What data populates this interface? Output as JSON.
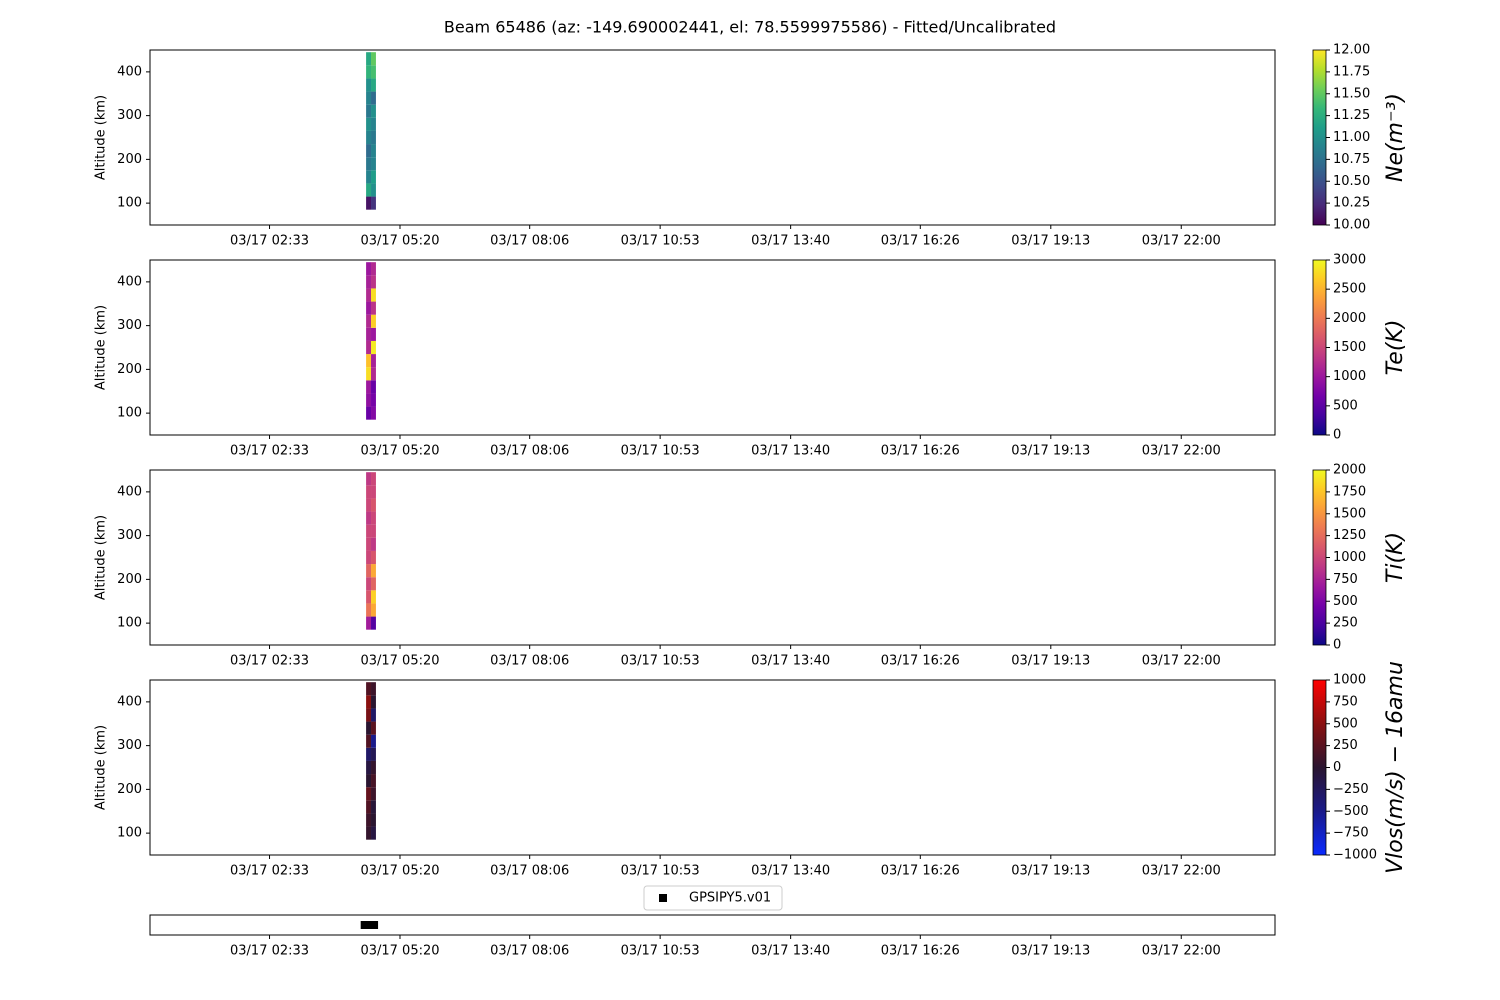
{
  "title": "Beam 65486 (az: -149.690002441, el: 78.5599975586) - Fitted/Uncalibrated",
  "chart_data": [
    {
      "type": "heatmap",
      "ylabel": "Altitude (km)",
      "xlim": [
        0,
        24
      ],
      "xticks": [
        {
          "value": 2.55,
          "label": "03/17 02:33"
        },
        {
          "value": 5.333,
          "label": "03/17 05:20"
        },
        {
          "value": 8.1,
          "label": "03/17 08:06"
        },
        {
          "value": 10.883,
          "label": "03/17 10:53"
        },
        {
          "value": 13.667,
          "label": "03/17 13:40"
        },
        {
          "value": 16.433,
          "label": "03/17 16:26"
        },
        {
          "value": 19.217,
          "label": "03/17 19:13"
        },
        {
          "value": 22,
          "label": "03/17 22:00"
        }
      ],
      "ylim": [
        50,
        450
      ],
      "yticks": [
        100,
        200,
        300,
        400
      ],
      "x_edges": [
        4.61,
        4.715,
        4.82
      ],
      "y_edges": [
        85,
        115,
        145,
        175,
        205,
        235,
        265,
        295,
        325,
        355,
        385,
        415,
        445
      ],
      "values": [
        [
          10.1,
          10.3
        ],
        [
          11.2,
          11.0
        ],
        [
          10.9,
          11.1
        ],
        [
          10.8,
          10.9
        ],
        [
          10.7,
          10.9
        ],
        [
          10.9,
          10.8
        ],
        [
          11.0,
          10.9
        ],
        [
          10.8,
          11.0
        ],
        [
          10.9,
          10.7
        ],
        [
          11.0,
          11.2
        ],
        [
          11.3,
          11.4
        ],
        [
          11.2,
          11.5
        ]
      ],
      "colorbar": {
        "label": "Ne(m⁻³)",
        "lim": [
          10,
          12
        ],
        "ticks": [
          {
            "value": 10,
            "label": "10.00"
          },
          {
            "value": 10.25,
            "label": "10.25"
          },
          {
            "value": 10.5,
            "label": "10.50"
          },
          {
            "value": 10.75,
            "label": "10.75"
          },
          {
            "value": 11,
            "label": "11.00"
          },
          {
            "value": 11.25,
            "label": "11.25"
          },
          {
            "value": 11.5,
            "label": "11.50"
          },
          {
            "value": 11.75,
            "label": "11.75"
          },
          {
            "value": 12,
            "label": "12.00"
          }
        ],
        "colormap": [
          "#440154",
          "#482878",
          "#3e4989",
          "#31688e",
          "#26828e",
          "#1f9e89",
          "#35b779",
          "#6ece58",
          "#b5de2b",
          "#fde725"
        ]
      }
    },
    {
      "type": "heatmap",
      "ylabel": "Altitude (km)",
      "xlim": [
        0,
        24
      ],
      "xticks": [
        {
          "value": 2.55,
          "label": "03/17 02:33"
        },
        {
          "value": 5.333,
          "label": "03/17 05:20"
        },
        {
          "value": 8.1,
          "label": "03/17 08:06"
        },
        {
          "value": 10.883,
          "label": "03/17 10:53"
        },
        {
          "value": 13.667,
          "label": "03/17 13:40"
        },
        {
          "value": 16.433,
          "label": "03/17 16:26"
        },
        {
          "value": 19.217,
          "label": "03/17 19:13"
        },
        {
          "value": 22,
          "label": "03/17 22:00"
        }
      ],
      "ylim": [
        50,
        450
      ],
      "yticks": [
        100,
        200,
        300,
        400
      ],
      "x_edges": [
        4.61,
        4.715,
        4.82
      ],
      "y_edges": [
        85,
        115,
        145,
        175,
        205,
        235,
        265,
        295,
        325,
        355,
        385,
        415,
        445
      ],
      "values": [
        [
          600,
          800
        ],
        [
          900,
          700
        ],
        [
          1000,
          600
        ],
        [
          2800,
          1200
        ],
        [
          2600,
          1100
        ],
        [
          1200,
          2900
        ],
        [
          1100,
          1000
        ],
        [
          1200,
          2700
        ],
        [
          1000,
          1300
        ],
        [
          1200,
          2800
        ],
        [
          1100,
          1300
        ],
        [
          1000,
          1200
        ]
      ],
      "colorbar": {
        "label": "Te(K)",
        "lim": [
          0,
          3000
        ],
        "ticks": [
          0,
          500,
          1000,
          1500,
          2000,
          2500,
          3000
        ],
        "colormap": [
          "#0d0887",
          "#46039f",
          "#7201a8",
          "#9c179e",
          "#bd3786",
          "#d8576b",
          "#ed7953",
          "#fb9f3a",
          "#fdca26",
          "#f0f921"
        ]
      }
    },
    {
      "type": "heatmap",
      "ylabel": "Altitude (km)",
      "xlim": [
        0,
        24
      ],
      "xticks": [
        {
          "value": 2.55,
          "label": "03/17 02:33"
        },
        {
          "value": 5.333,
          "label": "03/17 05:20"
        },
        {
          "value": 8.1,
          "label": "03/17 08:06"
        },
        {
          "value": 10.883,
          "label": "03/17 10:53"
        },
        {
          "value": 13.667,
          "label": "03/17 13:40"
        },
        {
          "value": 16.433,
          "label": "03/17 16:26"
        },
        {
          "value": 19.217,
          "label": "03/17 19:13"
        },
        {
          "value": 22,
          "label": "03/17 22:00"
        }
      ],
      "ylim": [
        50,
        450
      ],
      "yticks": [
        100,
        200,
        300,
        400
      ],
      "x_edges": [
        4.61,
        4.715,
        4.82
      ],
      "y_edges": [
        85,
        115,
        145,
        175,
        205,
        235,
        265,
        295,
        325,
        355,
        385,
        415,
        445
      ],
      "values": [
        [
          700,
          300
        ],
        [
          1300,
          1600
        ],
        [
          1100,
          1800
        ],
        [
          1000,
          1200
        ],
        [
          1200,
          1600
        ],
        [
          1000,
          1100
        ],
        [
          1000,
          900
        ],
        [
          1000,
          1000
        ],
        [
          900,
          1000
        ],
        [
          1000,
          1100
        ],
        [
          1000,
          1000
        ],
        [
          900,
          1000
        ]
      ],
      "colorbar": {
        "label": "Ti(K)",
        "lim": [
          0,
          2000
        ],
        "ticks": [
          0,
          250,
          500,
          750,
          1000,
          1250,
          1500,
          1750,
          2000
        ],
        "colormap": [
          "#0d0887",
          "#46039f",
          "#7201a8",
          "#9c179e",
          "#bd3786",
          "#d8576b",
          "#ed7953",
          "#fb9f3a",
          "#fdca26",
          "#f0f921"
        ]
      }
    },
    {
      "type": "heatmap",
      "ylabel": "Altitude (km)",
      "xlim": [
        0,
        24
      ],
      "xticks": [
        {
          "value": 2.55,
          "label": "03/17 02:33"
        },
        {
          "value": 5.333,
          "label": "03/17 05:20"
        },
        {
          "value": 8.1,
          "label": "03/17 08:06"
        },
        {
          "value": 10.883,
          "label": "03/17 10:53"
        },
        {
          "value": 13.667,
          "label": "03/17 13:40"
        },
        {
          "value": 16.433,
          "label": "03/17 16:26"
        },
        {
          "value": 19.217,
          "label": "03/17 19:13"
        },
        {
          "value": 22,
          "label": "03/17 22:00"
        }
      ],
      "ylim": [
        50,
        450
      ],
      "yticks": [
        100,
        200,
        300,
        400
      ],
      "x_edges": [
        4.61,
        4.715,
        4.82
      ],
      "y_edges": [
        85,
        115,
        145,
        175,
        205,
        235,
        265,
        295,
        325,
        355,
        385,
        415,
        445
      ],
      "values": [
        [
          50,
          -100
        ],
        [
          100,
          0
        ],
        [
          200,
          -50
        ],
        [
          300,
          100
        ],
        [
          0,
          150
        ],
        [
          -100,
          50
        ],
        [
          -300,
          -200
        ],
        [
          200,
          -500
        ],
        [
          0,
          250
        ],
        [
          400,
          -300
        ],
        [
          500,
          0
        ],
        [
          200,
          100
        ]
      ],
      "colorbar": {
        "label": "Vlos(m/s) − 16amu",
        "lim": [
          -1000,
          1000
        ],
        "ticks": [
          {
            "value": -1000,
            "label": "−1000"
          },
          {
            "value": -750,
            "label": "−750"
          },
          {
            "value": -500,
            "label": "−500"
          },
          {
            "value": -250,
            "label": "−250"
          },
          0,
          250,
          500,
          750,
          1000
        ],
        "colormap": [
          "#0a2aff",
          "#1a1a8a",
          "#2a1530",
          "#8a1010",
          "#ff0000"
        ]
      }
    },
    {
      "type": "scatter",
      "xlim": [
        0,
        24
      ],
      "xticks": [
        {
          "value": 2.55,
          "label": "03/17 02:33"
        },
        {
          "value": 5.333,
          "label": "03/17 05:20"
        },
        {
          "value": 8.1,
          "label": "03/17 08:06"
        },
        {
          "value": 10.883,
          "label": "03/17 10:53"
        },
        {
          "value": 13.667,
          "label": "03/17 13:40"
        },
        {
          "value": 16.433,
          "label": "03/17 16:26"
        },
        {
          "value": 19.217,
          "label": "03/17 19:13"
        },
        {
          "value": 22,
          "label": "03/17 22:00"
        }
      ],
      "ylim": [
        -1,
        1
      ],
      "series": [
        {
          "name": "GPSIPY5.v01",
          "color": "#000000",
          "x": [
            4.58,
            4.63,
            4.68,
            4.73,
            4.78
          ],
          "values": [
            0,
            0,
            0,
            0,
            0
          ]
        }
      ],
      "legend": "above"
    }
  ]
}
